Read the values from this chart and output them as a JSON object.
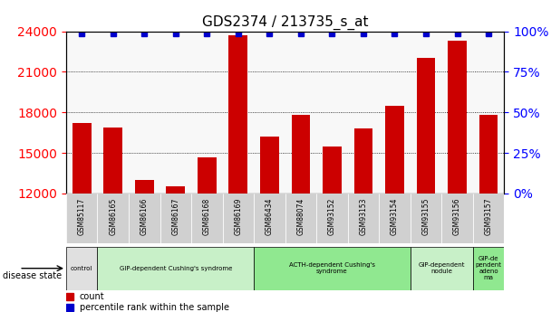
{
  "title": "GDS2374 / 213735_s_at",
  "samples": [
    "GSM85117",
    "GSM86165",
    "GSM86166",
    "GSM86167",
    "GSM86168",
    "GSM86169",
    "GSM86434",
    "GSM88074",
    "GSM93152",
    "GSM93153",
    "GSM93154",
    "GSM93155",
    "GSM93156",
    "GSM93157"
  ],
  "counts": [
    17200,
    16900,
    13000,
    12500,
    14700,
    23700,
    16200,
    17800,
    15500,
    16800,
    18500,
    22000,
    23300,
    17800
  ],
  "percentiles": [
    100,
    100,
    100,
    100,
    100,
    100,
    100,
    100,
    100,
    100,
    100,
    100,
    100,
    100
  ],
  "disease_groups": [
    {
      "label": "control",
      "start": 0,
      "end": 1,
      "color": "#e0e0e0"
    },
    {
      "label": "GIP-dependent Cushing's syndrome",
      "start": 1,
      "end": 6,
      "color": "#c8f0c8"
    },
    {
      "label": "ACTH-dependent Cushing's\nsyndrome",
      "start": 6,
      "end": 11,
      "color": "#90e890"
    },
    {
      "label": "GIP-dependent\nnodule",
      "start": 11,
      "end": 13,
      "color": "#c8f0c8"
    },
    {
      "label": "GIP-de\npendent\nadeno\nma",
      "start": 13,
      "end": 14,
      "color": "#90e890"
    }
  ],
  "ylim_left": [
    12000,
    24000
  ],
  "ylim_right": [
    0,
    100
  ],
  "yticks_left": [
    12000,
    15000,
    18000,
    21000,
    24000
  ],
  "yticks_right": [
    0,
    25,
    50,
    75,
    100
  ],
  "bar_color": "#cc0000",
  "dot_color": "#0000cc",
  "background_color": "#ffffff"
}
